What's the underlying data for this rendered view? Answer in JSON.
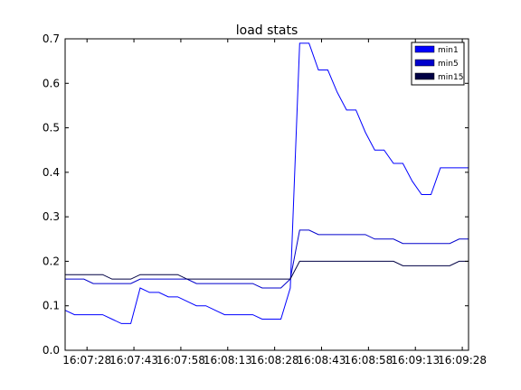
{
  "chart_data": {
    "type": "line",
    "title": "load stats",
    "xlabel": "",
    "ylabel": "",
    "ylim": [
      0.0,
      0.7
    ],
    "yticks": [
      "0.0",
      "0.1",
      "0.2",
      "0.3",
      "0.4",
      "0.5",
      "0.6",
      "0.7"
    ],
    "xticks": [
      "16:07:28",
      "16:07:43",
      "16:07:58",
      "16:08:13",
      "16:08:28",
      "16:08:43",
      "16:08:58",
      "16:09:13",
      "16:09:28"
    ],
    "grid": false,
    "legend_position": "top-right",
    "x": [
      "16:07:21",
      "16:07:24",
      "16:07:27",
      "16:07:30",
      "16:07:33",
      "16:07:36",
      "16:07:39",
      "16:07:42",
      "16:07:45",
      "16:07:48",
      "16:07:51",
      "16:07:54",
      "16:07:57",
      "16:08:00",
      "16:08:03",
      "16:08:06",
      "16:08:09",
      "16:08:12",
      "16:08:15",
      "16:08:18",
      "16:08:21",
      "16:08:24",
      "16:08:27",
      "16:08:30",
      "16:08:33",
      "16:08:36",
      "16:08:39",
      "16:08:42",
      "16:08:45",
      "16:08:48",
      "16:08:51",
      "16:08:54",
      "16:08:57",
      "16:09:00",
      "16:09:03",
      "16:09:06",
      "16:09:09",
      "16:09:12",
      "16:09:15",
      "16:09:18",
      "16:09:21",
      "16:09:24",
      "16:09:27",
      "16:09:30"
    ],
    "series": [
      {
        "name": "min1",
        "color": "#0000ff",
        "values": [
          0.09,
          0.08,
          0.08,
          0.08,
          0.08,
          0.07,
          0.06,
          0.06,
          0.14,
          0.13,
          0.13,
          0.12,
          0.12,
          0.11,
          0.1,
          0.1,
          0.09,
          0.08,
          0.08,
          0.08,
          0.08,
          0.07,
          0.07,
          0.07,
          0.14,
          0.69,
          0.69,
          0.63,
          0.63,
          0.58,
          0.54,
          0.54,
          0.49,
          0.45,
          0.45,
          0.42,
          0.42,
          0.38,
          0.35,
          0.35,
          0.41,
          0.41,
          0.41,
          0.41
        ]
      },
      {
        "name": "min5",
        "color": "#0000cc",
        "values": [
          0.16,
          0.16,
          0.16,
          0.15,
          0.15,
          0.15,
          0.15,
          0.15,
          0.16,
          0.16,
          0.16,
          0.16,
          0.16,
          0.16,
          0.15,
          0.15,
          0.15,
          0.15,
          0.15,
          0.15,
          0.15,
          0.14,
          0.14,
          0.14,
          0.16,
          0.27,
          0.27,
          0.26,
          0.26,
          0.26,
          0.26,
          0.26,
          0.26,
          0.25,
          0.25,
          0.25,
          0.24,
          0.24,
          0.24,
          0.24,
          0.24,
          0.24,
          0.25,
          0.25
        ]
      },
      {
        "name": "min15",
        "color": "#000044",
        "values": [
          0.17,
          0.17,
          0.17,
          0.17,
          0.17,
          0.16,
          0.16,
          0.16,
          0.17,
          0.17,
          0.17,
          0.17,
          0.17,
          0.16,
          0.16,
          0.16,
          0.16,
          0.16,
          0.16,
          0.16,
          0.16,
          0.16,
          0.16,
          0.16,
          0.16,
          0.2,
          0.2,
          0.2,
          0.2,
          0.2,
          0.2,
          0.2,
          0.2,
          0.2,
          0.2,
          0.2,
          0.19,
          0.19,
          0.19,
          0.19,
          0.19,
          0.19,
          0.2,
          0.2
        ]
      }
    ]
  }
}
